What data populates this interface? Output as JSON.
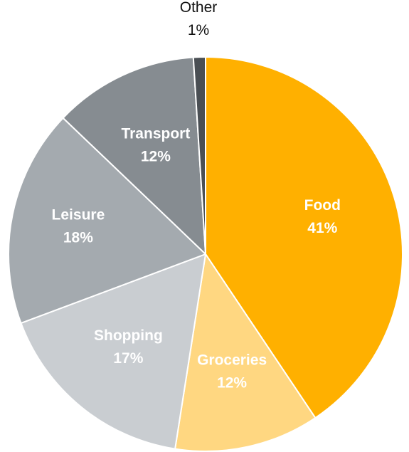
{
  "chart_data": {
    "type": "pie",
    "title": "",
    "start_angle_deg": 0,
    "direction": "clockwise",
    "slices": [
      {
        "name": "Food",
        "label": "Food",
        "percent_label": "41%",
        "value": 41,
        "color": "#FFB000",
        "label_color": "#ffffff",
        "label_outside": false
      },
      {
        "name": "Groceries",
        "label": "Groceries",
        "percent_label": "12%",
        "value": 12,
        "color": "#FFD781",
        "label_color": "#ffffff",
        "label_outside": false
      },
      {
        "name": "Shopping",
        "label": "Shopping",
        "percent_label": "17%",
        "value": 17,
        "color": "#C9CDD1",
        "label_color": "#ffffff",
        "label_outside": false
      },
      {
        "name": "Leisure",
        "label": "Leisure",
        "percent_label": "18%",
        "value": 18,
        "color": "#A4AAAF",
        "label_color": "#ffffff",
        "label_outside": false
      },
      {
        "name": "Transport",
        "label": "Transport",
        "percent_label": "12%",
        "value": 12,
        "color": "#868C91",
        "label_color": "#ffffff",
        "label_outside": false
      },
      {
        "name": "Other",
        "label": "Other",
        "percent_label": "1%",
        "value": 1,
        "color": "#4A4F54",
        "label_color": "#111111",
        "label_outside": true
      }
    ]
  }
}
